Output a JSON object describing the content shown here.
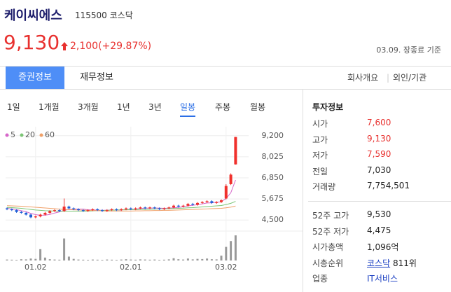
{
  "header": {
    "name": "케이씨에스",
    "code": "115500",
    "market": "코스닥",
    "price": "9,130",
    "change": "2,100(+29.87%)",
    "as_of": "03.09. 장종료 기준"
  },
  "tabs": [
    "증권정보",
    "재무정보"
  ],
  "links": [
    "회사개요",
    "외인/기관"
  ],
  "periods": [
    "1일",
    "1개월",
    "3개월",
    "1년",
    "3년",
    "일봉",
    "주봉",
    "월봉"
  ],
  "info": {
    "title": "투자정보",
    "groups": [
      [
        {
          "label": "시가",
          "value": "7,600"
        },
        {
          "label": "고가",
          "value": "9,130"
        },
        {
          "label": "저가",
          "value": "7,590"
        },
        {
          "label": "전일",
          "value": "7,030"
        },
        {
          "label": "거래량",
          "value": "7,754,501"
        }
      ],
      [
        {
          "label": "52주 고가",
          "value": "9,530"
        },
        {
          "label": "52주 저가",
          "value": "4,475"
        },
        {
          "label": "시가총액",
          "value": "1,096억"
        },
        {
          "label": "시총순위",
          "link": "코스닥",
          "value": "811위"
        },
        {
          "label": "업종",
          "link": "IT서비스"
        }
      ]
    ]
  },
  "chart_data": {
    "type": "candlestick",
    "categories": [
      null,
      null,
      null,
      null,
      null,
      null,
      "01.02",
      null,
      null,
      null,
      null,
      null,
      null,
      null,
      null,
      null,
      null,
      null,
      null,
      null,
      null,
      null,
      null,
      null,
      null,
      null,
      "02.01",
      null,
      null,
      null,
      null,
      null,
      null,
      null,
      null,
      null,
      null,
      null,
      null,
      null,
      null,
      null,
      null,
      null,
      null,
      null,
      "03.02",
      null,
      null
    ],
    "open": [
      5150,
      5100,
      5050,
      4950,
      4900,
      4800,
      4650,
      4700,
      4800,
      4900,
      5000,
      5050,
      5000,
      5250,
      5150,
      5100,
      5050,
      5000,
      5050,
      5100,
      5050,
      5000,
      5050,
      5100,
      5050,
      5100,
      5150,
      5100,
      5150,
      5200,
      5150,
      5200,
      5150,
      5100,
      5150,
      5200,
      5300,
      5250,
      5300,
      5400,
      5350,
      5450,
      5500,
      5550,
      5450,
      5500,
      5700,
      6500,
      7600
    ],
    "high": [
      5200,
      5150,
      5100,
      5000,
      4950,
      4850,
      4750,
      4850,
      4950,
      5050,
      5100,
      5100,
      5700,
      5300,
      5200,
      5150,
      5100,
      5100,
      5150,
      5150,
      5100,
      5100,
      5150,
      5150,
      5150,
      5200,
      5200,
      5200,
      5250,
      5250,
      5250,
      5250,
      5200,
      5200,
      5250,
      5350,
      5350,
      5350,
      5450,
      5450,
      5500,
      5550,
      5600,
      5600,
      5550,
      5650,
      6500,
      7100,
      9130
    ],
    "low": [
      5050,
      5000,
      4900,
      4850,
      4750,
      4600,
      4600,
      4650,
      4750,
      4850,
      4950,
      4950,
      4950,
      5100,
      5050,
      5000,
      4950,
      4950,
      5000,
      5000,
      4950,
      4950,
      5000,
      5000,
      5000,
      5050,
      5050,
      5050,
      5100,
      5100,
      5100,
      5100,
      5050,
      5050,
      5100,
      5150,
      5200,
      5200,
      5250,
      5300,
      5300,
      5400,
      5450,
      5400,
      5400,
      5450,
      5650,
      6450,
      7590
    ],
    "close": [
      5100,
      5050,
      4950,
      4900,
      4800,
      4650,
      4700,
      4800,
      4900,
      5000,
      5050,
      5000,
      5250,
      5150,
      5100,
      5050,
      5000,
      5050,
      5100,
      5050,
      5000,
      5050,
      5100,
      5050,
      5100,
      5150,
      5100,
      5150,
      5200,
      5150,
      5200,
      5150,
      5100,
      5150,
      5200,
      5300,
      5250,
      5300,
      5400,
      5350,
      5450,
      5500,
      5550,
      5450,
      5500,
      5600,
      6400,
      7030,
      9130
    ],
    "up_color": "#f0302c",
    "down_color": "#1f5fd6",
    "ylim": [
      4000,
      9700
    ],
    "yticks": [
      {
        "value": 4500,
        "label": "4,500"
      },
      {
        "value": 5675,
        "label": "5,675"
      },
      {
        "value": 6850,
        "label": "6,850"
      },
      {
        "value": 8025,
        "label": "8,025"
      },
      {
        "value": 9200,
        "label": "9,200"
      }
    ],
    "grid": true,
    "series": [
      {
        "name": "5",
        "color": "#d667c9",
        "values": [
          5150,
          5120,
          5080,
          5020,
          4960,
          4870,
          4800,
          4760,
          4770,
          4810,
          4890,
          4950,
          5040,
          5090,
          5110,
          5110,
          5110,
          5070,
          5060,
          5050,
          5040,
          5050,
          5060,
          5050,
          5060,
          5090,
          5100,
          5110,
          5140,
          5160,
          5160,
          5170,
          5160,
          5150,
          5160,
          5180,
          5200,
          5240,
          5290,
          5320,
          5350,
          5400,
          5450,
          5460,
          5490,
          5520,
          5700,
          6020,
          6730
        ]
      },
      {
        "name": "20",
        "color": "#7cc576",
        "values": [
          5200,
          5190,
          5170,
          5150,
          5120,
          5090,
          5060,
          5040,
          5020,
          5010,
          5000,
          4990,
          4990,
          4990,
          4990,
          4990,
          4990,
          5000,
          5010,
          5020,
          5030,
          5040,
          5050,
          5060,
          5070,
          5070,
          5080,
          5080,
          5090,
          5090,
          5100,
          5110,
          5120,
          5120,
          5130,
          5140,
          5150,
          5160,
          5180,
          5190,
          5210,
          5230,
          5250,
          5270,
          5290,
          5310,
          5360,
          5430,
          5540
        ]
      },
      {
        "name": "60",
        "color": "#f0a068",
        "values": [
          5300,
          5290,
          5280,
          5270,
          5250,
          5230,
          5210,
          5190,
          5170,
          5150,
          5130,
          5110,
          5090,
          5080,
          5070,
          5060,
          5050,
          5040,
          5030,
          5020,
          5010,
          5000,
          5000,
          5000,
          5000,
          5000,
          5000,
          5010,
          5010,
          5020,
          5020,
          5030,
          5030,
          5040,
          5040,
          5050,
          5060,
          5070,
          5080,
          5090,
          5100,
          5110,
          5120,
          5130,
          5140,
          5150,
          5180,
          5220,
          5280
        ]
      }
    ],
    "volume": {
      "color": "#999999",
      "ylim": [
        0,
        8000000
      ],
      "values": [
        300000,
        250000,
        200000,
        400000,
        350000,
        600000,
        500000,
        3500000,
        900000,
        400000,
        300000,
        250000,
        6800000,
        1200000,
        500000,
        300000,
        250000,
        200000,
        300000,
        250000,
        200000,
        300000,
        250000,
        200000,
        300000,
        400000,
        300000,
        250000,
        350000,
        300000,
        250000,
        300000,
        200000,
        250000,
        350000,
        700000,
        400000,
        300000,
        600000,
        350000,
        500000,
        450000,
        600000,
        400000,
        350000,
        1500000,
        4200000,
        6000000,
        7754501
      ]
    }
  }
}
